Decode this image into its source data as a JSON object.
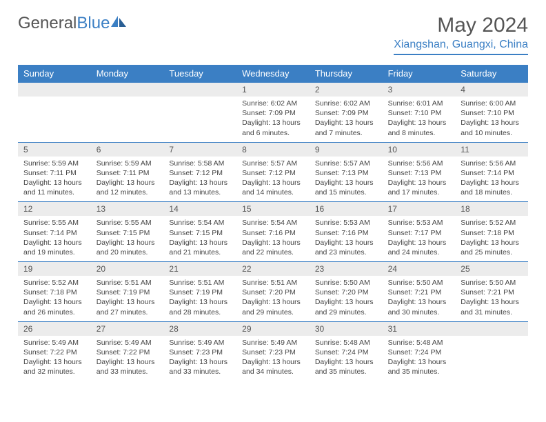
{
  "logo": {
    "text1": "General",
    "text2": "Blue"
  },
  "title": "May 2024",
  "location": "Xiangshan, Guangxi, China",
  "colors": {
    "accent": "#3b7fc4",
    "daynum_bg": "#ececec",
    "text": "#555555",
    "detail_text": "#444444",
    "background": "#ffffff"
  },
  "daynames": [
    "Sunday",
    "Monday",
    "Tuesday",
    "Wednesday",
    "Thursday",
    "Friday",
    "Saturday"
  ],
  "weeks": [
    [
      {
        "num": "",
        "sunrise": "",
        "sunset": "",
        "daylight": ""
      },
      {
        "num": "",
        "sunrise": "",
        "sunset": "",
        "daylight": ""
      },
      {
        "num": "",
        "sunrise": "",
        "sunset": "",
        "daylight": ""
      },
      {
        "num": "1",
        "sunrise": "Sunrise: 6:02 AM",
        "sunset": "Sunset: 7:09 PM",
        "daylight": "Daylight: 13 hours and 6 minutes."
      },
      {
        "num": "2",
        "sunrise": "Sunrise: 6:02 AM",
        "sunset": "Sunset: 7:09 PM",
        "daylight": "Daylight: 13 hours and 7 minutes."
      },
      {
        "num": "3",
        "sunrise": "Sunrise: 6:01 AM",
        "sunset": "Sunset: 7:10 PM",
        "daylight": "Daylight: 13 hours and 8 minutes."
      },
      {
        "num": "4",
        "sunrise": "Sunrise: 6:00 AM",
        "sunset": "Sunset: 7:10 PM",
        "daylight": "Daylight: 13 hours and 10 minutes."
      }
    ],
    [
      {
        "num": "5",
        "sunrise": "Sunrise: 5:59 AM",
        "sunset": "Sunset: 7:11 PM",
        "daylight": "Daylight: 13 hours and 11 minutes."
      },
      {
        "num": "6",
        "sunrise": "Sunrise: 5:59 AM",
        "sunset": "Sunset: 7:11 PM",
        "daylight": "Daylight: 13 hours and 12 minutes."
      },
      {
        "num": "7",
        "sunrise": "Sunrise: 5:58 AM",
        "sunset": "Sunset: 7:12 PM",
        "daylight": "Daylight: 13 hours and 13 minutes."
      },
      {
        "num": "8",
        "sunrise": "Sunrise: 5:57 AM",
        "sunset": "Sunset: 7:12 PM",
        "daylight": "Daylight: 13 hours and 14 minutes."
      },
      {
        "num": "9",
        "sunrise": "Sunrise: 5:57 AM",
        "sunset": "Sunset: 7:13 PM",
        "daylight": "Daylight: 13 hours and 15 minutes."
      },
      {
        "num": "10",
        "sunrise": "Sunrise: 5:56 AM",
        "sunset": "Sunset: 7:13 PM",
        "daylight": "Daylight: 13 hours and 17 minutes."
      },
      {
        "num": "11",
        "sunrise": "Sunrise: 5:56 AM",
        "sunset": "Sunset: 7:14 PM",
        "daylight": "Daylight: 13 hours and 18 minutes."
      }
    ],
    [
      {
        "num": "12",
        "sunrise": "Sunrise: 5:55 AM",
        "sunset": "Sunset: 7:14 PM",
        "daylight": "Daylight: 13 hours and 19 minutes."
      },
      {
        "num": "13",
        "sunrise": "Sunrise: 5:55 AM",
        "sunset": "Sunset: 7:15 PM",
        "daylight": "Daylight: 13 hours and 20 minutes."
      },
      {
        "num": "14",
        "sunrise": "Sunrise: 5:54 AM",
        "sunset": "Sunset: 7:15 PM",
        "daylight": "Daylight: 13 hours and 21 minutes."
      },
      {
        "num": "15",
        "sunrise": "Sunrise: 5:54 AM",
        "sunset": "Sunset: 7:16 PM",
        "daylight": "Daylight: 13 hours and 22 minutes."
      },
      {
        "num": "16",
        "sunrise": "Sunrise: 5:53 AM",
        "sunset": "Sunset: 7:16 PM",
        "daylight": "Daylight: 13 hours and 23 minutes."
      },
      {
        "num": "17",
        "sunrise": "Sunrise: 5:53 AM",
        "sunset": "Sunset: 7:17 PM",
        "daylight": "Daylight: 13 hours and 24 minutes."
      },
      {
        "num": "18",
        "sunrise": "Sunrise: 5:52 AM",
        "sunset": "Sunset: 7:18 PM",
        "daylight": "Daylight: 13 hours and 25 minutes."
      }
    ],
    [
      {
        "num": "19",
        "sunrise": "Sunrise: 5:52 AM",
        "sunset": "Sunset: 7:18 PM",
        "daylight": "Daylight: 13 hours and 26 minutes."
      },
      {
        "num": "20",
        "sunrise": "Sunrise: 5:51 AM",
        "sunset": "Sunset: 7:19 PM",
        "daylight": "Daylight: 13 hours and 27 minutes."
      },
      {
        "num": "21",
        "sunrise": "Sunrise: 5:51 AM",
        "sunset": "Sunset: 7:19 PM",
        "daylight": "Daylight: 13 hours and 28 minutes."
      },
      {
        "num": "22",
        "sunrise": "Sunrise: 5:51 AM",
        "sunset": "Sunset: 7:20 PM",
        "daylight": "Daylight: 13 hours and 29 minutes."
      },
      {
        "num": "23",
        "sunrise": "Sunrise: 5:50 AM",
        "sunset": "Sunset: 7:20 PM",
        "daylight": "Daylight: 13 hours and 29 minutes."
      },
      {
        "num": "24",
        "sunrise": "Sunrise: 5:50 AM",
        "sunset": "Sunset: 7:21 PM",
        "daylight": "Daylight: 13 hours and 30 minutes."
      },
      {
        "num": "25",
        "sunrise": "Sunrise: 5:50 AM",
        "sunset": "Sunset: 7:21 PM",
        "daylight": "Daylight: 13 hours and 31 minutes."
      }
    ],
    [
      {
        "num": "26",
        "sunrise": "Sunrise: 5:49 AM",
        "sunset": "Sunset: 7:22 PM",
        "daylight": "Daylight: 13 hours and 32 minutes."
      },
      {
        "num": "27",
        "sunrise": "Sunrise: 5:49 AM",
        "sunset": "Sunset: 7:22 PM",
        "daylight": "Daylight: 13 hours and 33 minutes."
      },
      {
        "num": "28",
        "sunrise": "Sunrise: 5:49 AM",
        "sunset": "Sunset: 7:23 PM",
        "daylight": "Daylight: 13 hours and 33 minutes."
      },
      {
        "num": "29",
        "sunrise": "Sunrise: 5:49 AM",
        "sunset": "Sunset: 7:23 PM",
        "daylight": "Daylight: 13 hours and 34 minutes."
      },
      {
        "num": "30",
        "sunrise": "Sunrise: 5:48 AM",
        "sunset": "Sunset: 7:24 PM",
        "daylight": "Daylight: 13 hours and 35 minutes."
      },
      {
        "num": "31",
        "sunrise": "Sunrise: 5:48 AM",
        "sunset": "Sunset: 7:24 PM",
        "daylight": "Daylight: 13 hours and 35 minutes."
      },
      {
        "num": "",
        "sunrise": "",
        "sunset": "",
        "daylight": ""
      }
    ]
  ]
}
